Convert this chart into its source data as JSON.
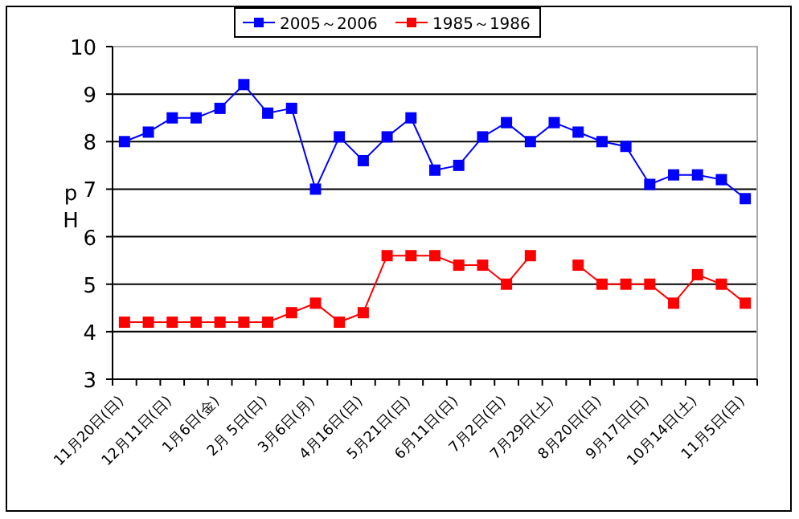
{
  "chart_data": {
    "type": "line",
    "ylabel": "pH",
    "categories": [
      "11月20日(日)",
      null,
      "12月11日(日)",
      null,
      "1月6日(金)",
      null,
      "2月 5日(日)",
      null,
      "3月6日(月)",
      null,
      "4月16日(日)",
      null,
      "5月21日(日)",
      null,
      "6月11日(日)",
      null,
      "7月2日(日)",
      null,
      "7月29日(土)",
      null,
      "8月20日(日)",
      null,
      "9月17日(日)",
      null,
      "10月14日(土)",
      null,
      "11月5日(日)"
    ],
    "series": [
      {
        "name": "2005～2006",
        "color": "#0000ff",
        "values": [
          8.0,
          8.2,
          8.5,
          8.5,
          8.7,
          9.2,
          8.6,
          8.7,
          7.0,
          8.1,
          7.6,
          8.1,
          8.5,
          7.4,
          7.5,
          8.1,
          8.4,
          8.0,
          8.4,
          8.2,
          8.0,
          7.9,
          7.1,
          7.3,
          7.3,
          7.2,
          6.8
        ]
      },
      {
        "name": "1985～1986",
        "color": "#ff0000",
        "values": [
          4.2,
          4.2,
          4.2,
          4.2,
          4.2,
          4.2,
          4.2,
          4.4,
          4.6,
          4.2,
          4.4,
          5.6,
          5.6,
          5.6,
          5.4,
          5.4,
          5.0,
          5.6,
          null,
          5.4,
          5.0,
          5.0,
          5.0,
          4.6,
          5.2,
          5.0,
          4.6
        ]
      }
    ],
    "ylim": [
      3,
      10
    ],
    "yticks": [
      3,
      4,
      5,
      6,
      7,
      8,
      9,
      10
    ],
    "grid": "y",
    "legend": "top",
    "marker": "square",
    "line_style": "solid"
  }
}
